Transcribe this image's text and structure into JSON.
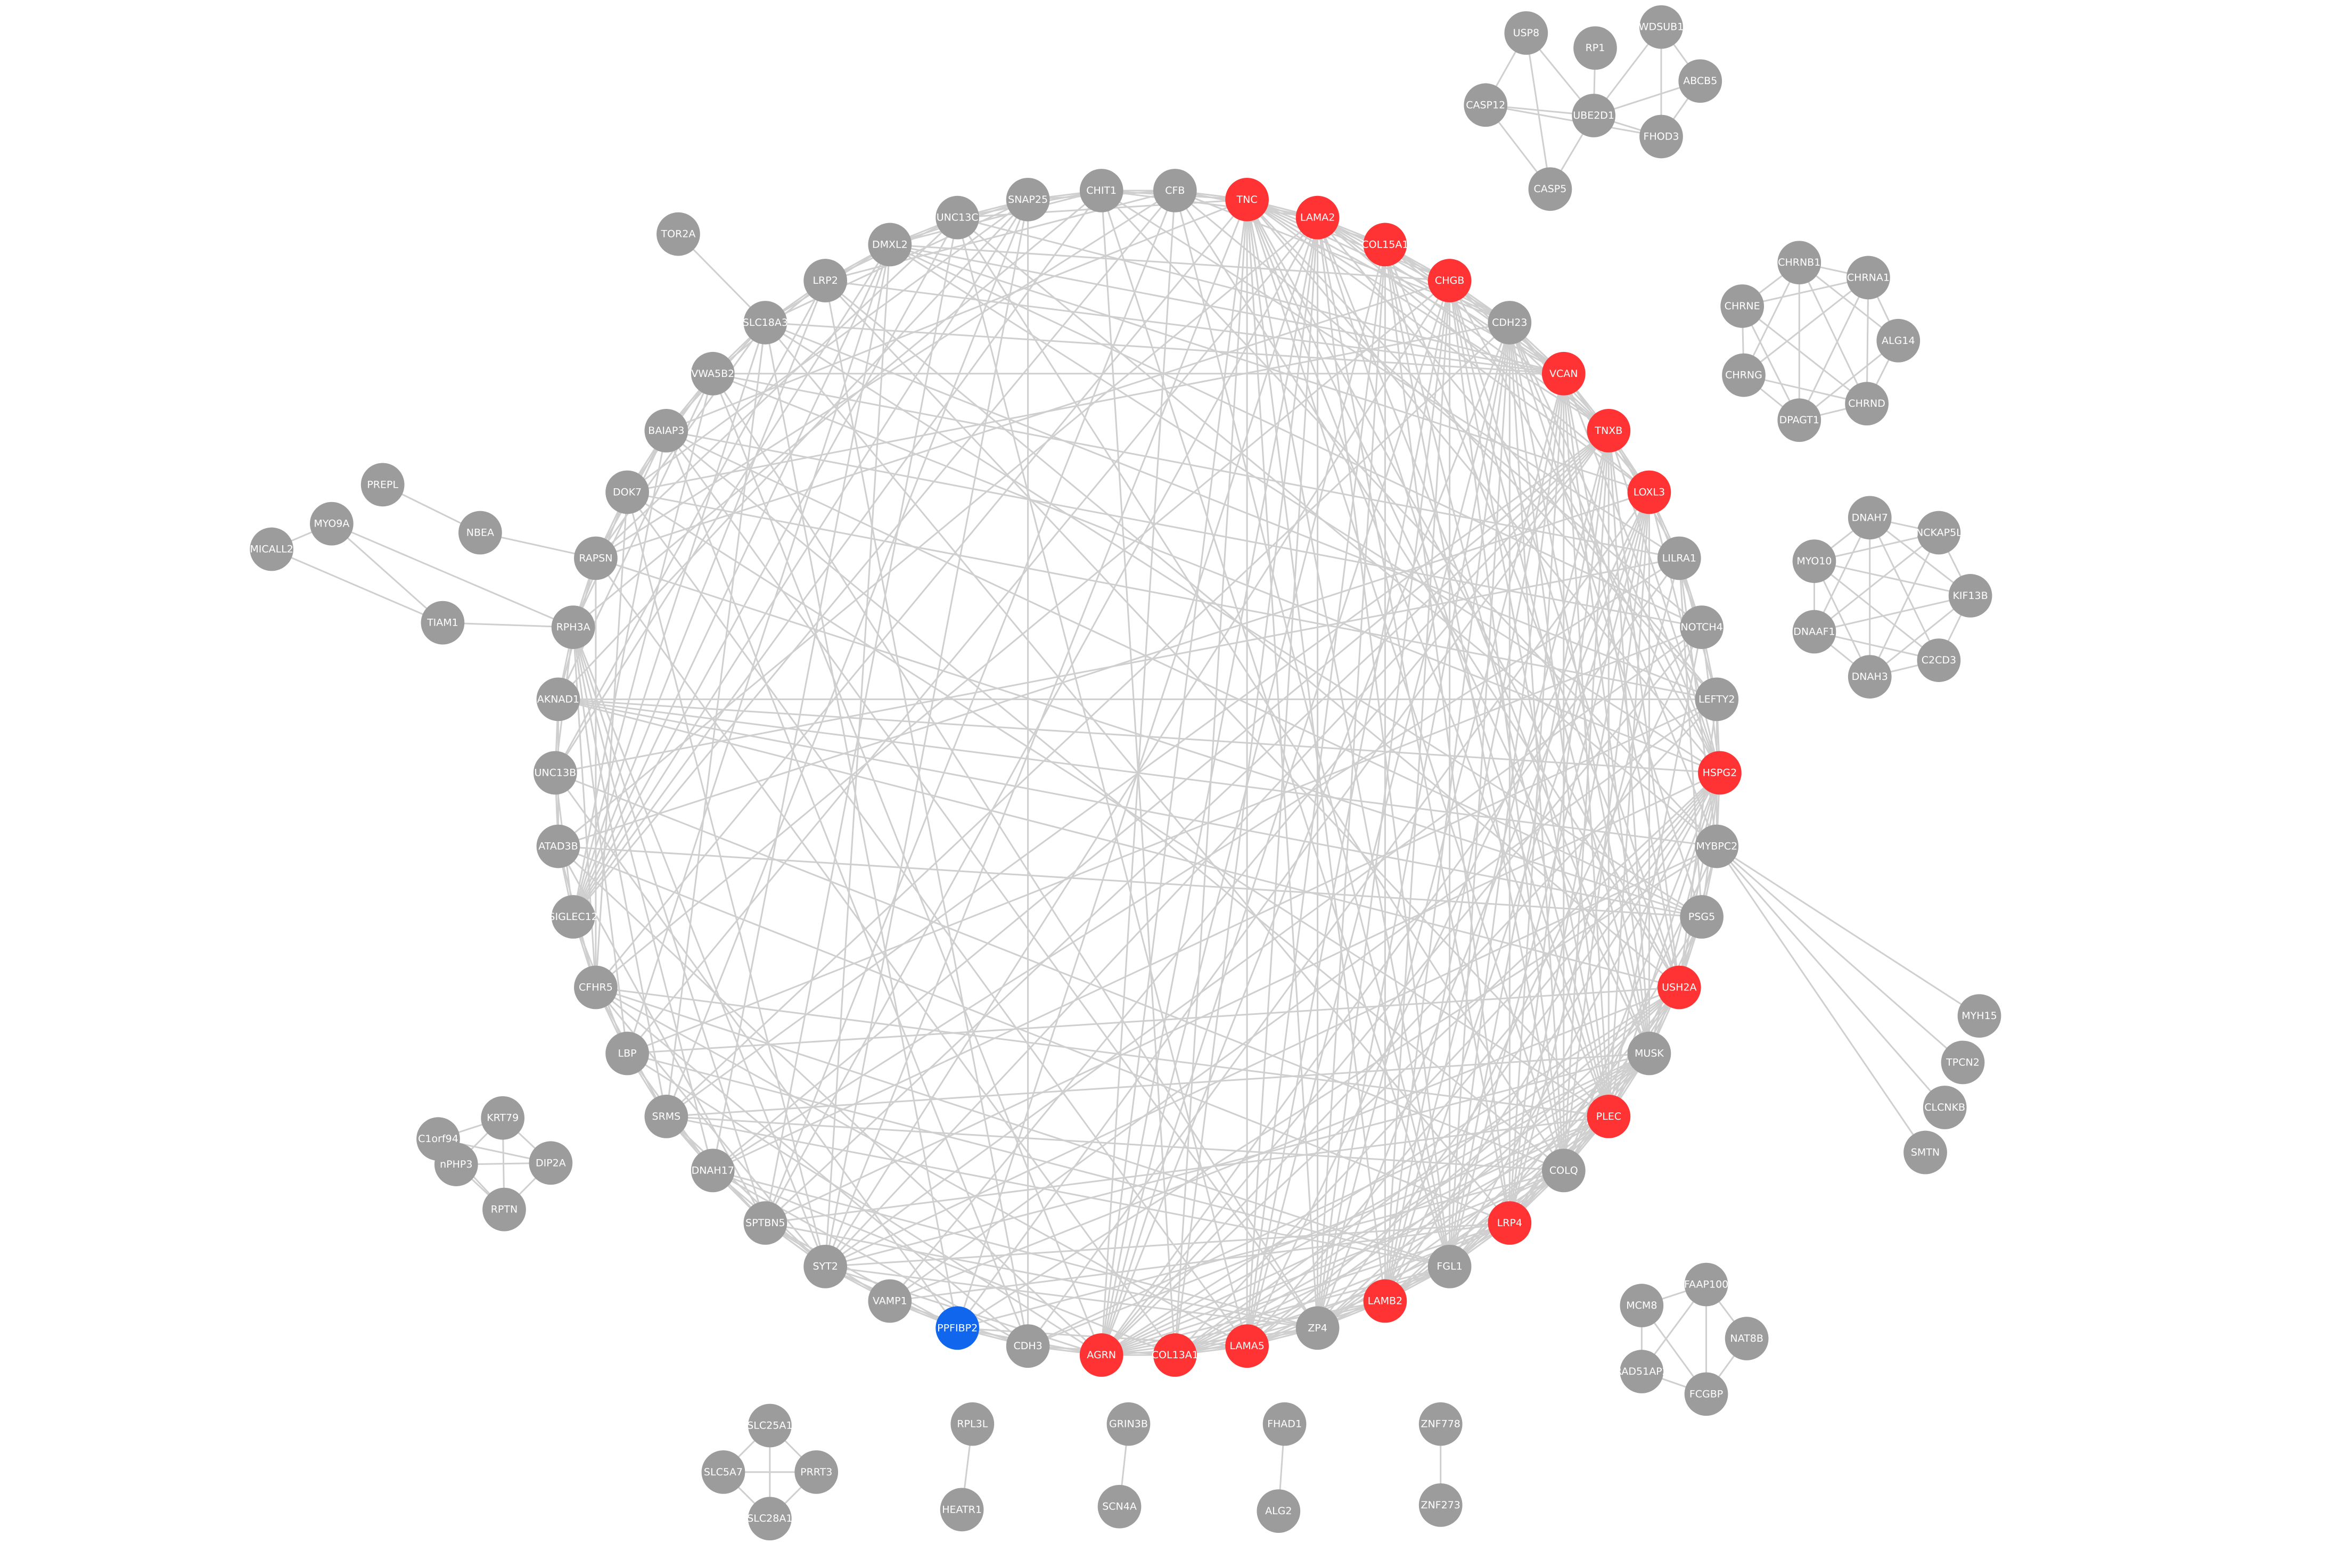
{
  "colors": {
    "default": "#9c9c9c",
    "highlight": "#ff3333",
    "selected": "#1166ee",
    "edge": "#cfcfcf",
    "label": "#ffffff"
  },
  "nodes": [
    {
      "id": "TNC",
      "label": "TNC",
      "color": "highlight"
    },
    {
      "id": "LAMA2",
      "label": "LAMA2",
      "color": "highlight"
    },
    {
      "id": "COL15A1",
      "label": "COL15A1",
      "color": "highlight"
    },
    {
      "id": "CHGB",
      "label": "CHGB",
      "color": "highlight"
    },
    {
      "id": "CDH23",
      "label": "CDH23",
      "color": "default"
    },
    {
      "id": "VCAN",
      "label": "VCAN",
      "color": "highlight"
    },
    {
      "id": "TNXB",
      "label": "TNXB",
      "color": "highlight"
    },
    {
      "id": "LOXL3",
      "label": "LOXL3",
      "color": "highlight"
    },
    {
      "id": "LILRA1",
      "label": "LILRA1",
      "color": "default"
    },
    {
      "id": "NOTCH4",
      "label": "NOTCH4",
      "color": "default"
    },
    {
      "id": "LEFTY2",
      "label": "LEFTY2",
      "color": "default"
    },
    {
      "id": "HSPG2",
      "label": "HSPG2",
      "color": "highlight"
    },
    {
      "id": "MYBPC2",
      "label": "MYBPC2",
      "color": "default"
    },
    {
      "id": "PSG5",
      "label": "PSG5",
      "color": "default"
    },
    {
      "id": "USH2A",
      "label": "USH2A",
      "color": "highlight"
    },
    {
      "id": "MUSK",
      "label": "MUSK",
      "color": "default"
    },
    {
      "id": "PLEC",
      "label": "PLEC",
      "color": "highlight"
    },
    {
      "id": "COLQ",
      "label": "COLQ",
      "color": "default"
    },
    {
      "id": "LRP4",
      "label": "LRP4",
      "color": "highlight"
    },
    {
      "id": "FGL1",
      "label": "FGL1",
      "color": "default"
    },
    {
      "id": "LAMB2",
      "label": "LAMB2",
      "color": "highlight"
    },
    {
      "id": "ZP4",
      "label": "ZP4",
      "color": "default"
    },
    {
      "id": "LAMA5",
      "label": "LAMA5",
      "color": "highlight"
    },
    {
      "id": "COL13A1",
      "label": "COL13A1",
      "color": "highlight"
    },
    {
      "id": "AGRN",
      "label": "AGRN",
      "color": "highlight"
    },
    {
      "id": "CDH3",
      "label": "CDH3",
      "color": "default"
    },
    {
      "id": "PPFIBP2",
      "label": "PPFIBP2",
      "color": "selected"
    },
    {
      "id": "VAMP1",
      "label": "VAMP1",
      "color": "default"
    },
    {
      "id": "SYT2",
      "label": "SYT2",
      "color": "default"
    },
    {
      "id": "SPTBN5",
      "label": "SPTBN5",
      "color": "default"
    },
    {
      "id": "DNAH17",
      "label": "DNAH17",
      "color": "default"
    },
    {
      "id": "SRMS",
      "label": "SRMS",
      "color": "default"
    },
    {
      "id": "LBP",
      "label": "LBP",
      "color": "default"
    },
    {
      "id": "CFHR5",
      "label": "CFHR5",
      "color": "default"
    },
    {
      "id": "SIGLEC12",
      "label": "SIGLEC12",
      "color": "default"
    },
    {
      "id": "ATAD3B",
      "label": "ATAD3B",
      "color": "default"
    },
    {
      "id": "UNC13B",
      "label": "UNC13B",
      "color": "default"
    },
    {
      "id": "AKNAD1",
      "label": "AKNAD1",
      "color": "default"
    },
    {
      "id": "RPH3A",
      "label": "RPH3A",
      "color": "default"
    },
    {
      "id": "RAPSN",
      "label": "RAPSN",
      "color": "default"
    },
    {
      "id": "DOK7",
      "label": "DOK7",
      "color": "default"
    },
    {
      "id": "BAIAP3",
      "label": "BAIAP3",
      "color": "default"
    },
    {
      "id": "VWA5B2",
      "label": "VWA5B2",
      "color": "default"
    },
    {
      "id": "SLC18A3",
      "label": "SLC18A3",
      "color": "default"
    },
    {
      "id": "LRP2",
      "label": "LRP2",
      "color": "default"
    },
    {
      "id": "DMXL2",
      "label": "DMXL2",
      "color": "default"
    },
    {
      "id": "UNC13C",
      "label": "UNC13C",
      "color": "default"
    },
    {
      "id": "SNAP25",
      "label": "SNAP25",
      "color": "default"
    },
    {
      "id": "CHIT1",
      "label": "CHIT1",
      "color": "default"
    },
    {
      "id": "CFB",
      "label": "CFB",
      "color": "default"
    },
    {
      "id": "TOR2A",
      "label": "TOR2A",
      "color": "default"
    },
    {
      "id": "PREPL",
      "label": "PREPL",
      "color": "default"
    },
    {
      "id": "NBEA",
      "label": "NBEA",
      "color": "default"
    },
    {
      "id": "MYO9A",
      "label": "MYO9A",
      "color": "default"
    },
    {
      "id": "MICALL2",
      "label": "MICALL2",
      "color": "default"
    },
    {
      "id": "TIAM1",
      "label": "TIAM1",
      "color": "default"
    },
    {
      "id": "USP8",
      "label": "USP8",
      "color": "default"
    },
    {
      "id": "RP1",
      "label": "RP1",
      "color": "default"
    },
    {
      "id": "WDSUB1",
      "label": "WDSUB1",
      "color": "default"
    },
    {
      "id": "ABCB5",
      "label": "ABCB5",
      "color": "default"
    },
    {
      "id": "CASP12",
      "label": "CASP12",
      "color": "default"
    },
    {
      "id": "UBE2D1",
      "label": "UBE2D1",
      "color": "default"
    },
    {
      "id": "FHOD3",
      "label": "FHOD3",
      "color": "default"
    },
    {
      "id": "CASP5",
      "label": "CASP5",
      "color": "default"
    },
    {
      "id": "CHRNB1",
      "label": "CHRNB1",
      "color": "default"
    },
    {
      "id": "CHRNA1",
      "label": "CHRNA1",
      "color": "default"
    },
    {
      "id": "CHRNE",
      "label": "CHRNE",
      "color": "default"
    },
    {
      "id": "ALG14",
      "label": "ALG14",
      "color": "default"
    },
    {
      "id": "CHRNG",
      "label": "CHRNG",
      "color": "default"
    },
    {
      "id": "CHRND",
      "label": "CHRND",
      "color": "default"
    },
    {
      "id": "DPAGT1",
      "label": "DPAGT1",
      "color": "default"
    },
    {
      "id": "DNAH7",
      "label": "DNAH7",
      "color": "default"
    },
    {
      "id": "NCKAP5L",
      "label": "NCKAP5L",
      "color": "default"
    },
    {
      "id": "MYO10",
      "label": "MYO10",
      "color": "default"
    },
    {
      "id": "KIF13B",
      "label": "KIF13B",
      "color": "default"
    },
    {
      "id": "DNAAF1",
      "label": "DNAAF1",
      "color": "default"
    },
    {
      "id": "C2CD3",
      "label": "C2CD3",
      "color": "default"
    },
    {
      "id": "DNAH3",
      "label": "DNAH3",
      "color": "default"
    },
    {
      "id": "MYH15",
      "label": "MYH15",
      "color": "default"
    },
    {
      "id": "TPCN2",
      "label": "TPCN2",
      "color": "default"
    },
    {
      "id": "CLCNKB",
      "label": "CLCNKB",
      "color": "default"
    },
    {
      "id": "SMTN",
      "label": "SMTN",
      "color": "default"
    },
    {
      "id": "KRT79",
      "label": "KRT79",
      "color": "default"
    },
    {
      "id": "C1orf94",
      "label": "C1orf94",
      "color": "default"
    },
    {
      "id": "nPHP3",
      "label": "nPHP3",
      "color": "default"
    },
    {
      "id": "DIP2A",
      "label": "DIP2A",
      "color": "default"
    },
    {
      "id": "RPTN",
      "label": "RPTN",
      "color": "default"
    },
    {
      "id": "FAAP100",
      "label": "FAAP100",
      "color": "default"
    },
    {
      "id": "MCM8",
      "label": "MCM8",
      "color": "default"
    },
    {
      "id": "NAT8B",
      "label": "NAT8B",
      "color": "default"
    },
    {
      "id": "RAD51AP2",
      "label": "RAD51AP2",
      "color": "default"
    },
    {
      "id": "FCGBP",
      "label": "FCGBP",
      "color": "default"
    },
    {
      "id": "SLC25A1",
      "label": "SLC25A1",
      "color": "default"
    },
    {
      "id": "SLC5A7",
      "label": "SLC5A7",
      "color": "default"
    },
    {
      "id": "PRRT3",
      "label": "PRRT3",
      "color": "default"
    },
    {
      "id": "SLC28A1",
      "label": "SLC28A1",
      "color": "default"
    },
    {
      "id": "RPL3L",
      "label": "RPL3L",
      "color": "default"
    },
    {
      "id": "HEATR1",
      "label": "HEATR1",
      "color": "default"
    },
    {
      "id": "GRIN3B",
      "label": "GRIN3B",
      "color": "default"
    },
    {
      "id": "SCN4A",
      "label": "SCN4A",
      "color": "default"
    },
    {
      "id": "FHAD1",
      "label": "FHAD1",
      "color": "default"
    },
    {
      "id": "ALG2",
      "label": "ALG2",
      "color": "default"
    },
    {
      "id": "ZNF778",
      "label": "ZNF778",
      "color": "default"
    },
    {
      "id": "ZNF273",
      "label": "ZNF273",
      "color": "default"
    }
  ],
  "edges": [
    [
      "TOR2A",
      "SLC18A3"
    ],
    [
      "PREPL",
      "NBEA"
    ],
    [
      "NBEA",
      "RAPSN"
    ],
    [
      "MYO9A",
      "MICALL2"
    ],
    [
      "MYO9A",
      "TIAM1"
    ],
    [
      "MYO9A",
      "RPH3A"
    ],
    [
      "MICALL2",
      "TIAM1"
    ],
    [
      "TIAM1",
      "RPH3A"
    ],
    [
      "USP8",
      "CASP12"
    ],
    [
      "USP8",
      "UBE2D1"
    ],
    [
      "USP8",
      "CASP5"
    ],
    [
      "RP1",
      "UBE2D1"
    ],
    [
      "WDSUB1",
      "ABCB5"
    ],
    [
      "WDSUB1",
      "UBE2D1"
    ],
    [
      "WDSUB1",
      "FHOD3"
    ],
    [
      "ABCB5",
      "FHOD3"
    ],
    [
      "CASP12",
      "UBE2D1"
    ],
    [
      "CASP12",
      "CASP5"
    ],
    [
      "CASP12",
      "FHOD3"
    ],
    [
      "UBE2D1",
      "FHOD3"
    ],
    [
      "UBE2D1",
      "CASP5"
    ],
    [
      "UBE2D1",
      "ABCB5"
    ],
    [
      "CHRNB1",
      "CHRNA1"
    ],
    [
      "CHRNB1",
      "CHRNE"
    ],
    [
      "CHRNB1",
      "CHRNG"
    ],
    [
      "CHRNB1",
      "CHRND"
    ],
    [
      "CHRNB1",
      "DPAGT1"
    ],
    [
      "CHRNB1",
      "ALG14"
    ],
    [
      "CHRNA1",
      "CHRNE"
    ],
    [
      "CHRNA1",
      "ALG14"
    ],
    [
      "CHRNA1",
      "CHRNG"
    ],
    [
      "CHRNA1",
      "CHRND"
    ],
    [
      "CHRNA1",
      "DPAGT1"
    ],
    [
      "CHRNE",
      "CHRNG"
    ],
    [
      "CHRNE",
      "CHRND"
    ],
    [
      "CHRNE",
      "DPAGT1"
    ],
    [
      "ALG14",
      "DPAGT1"
    ],
    [
      "ALG14",
      "CHRND"
    ],
    [
      "CHRNG",
      "CHRND"
    ],
    [
      "CHRNG",
      "DPAGT1"
    ],
    [
      "CHRND",
      "DPAGT1"
    ],
    [
      "DNAH7",
      "NCKAP5L"
    ],
    [
      "DNAH7",
      "MYO10"
    ],
    [
      "DNAH7",
      "KIF13B"
    ],
    [
      "DNAH7",
      "DNAAF1"
    ],
    [
      "DNAH7",
      "C2CD3"
    ],
    [
      "DNAH7",
      "DNAH3"
    ],
    [
      "NCKAP5L",
      "MYO10"
    ],
    [
      "NCKAP5L",
      "KIF13B"
    ],
    [
      "NCKAP5L",
      "DNAAF1"
    ],
    [
      "NCKAP5L",
      "DNAH3"
    ],
    [
      "MYO10",
      "KIF13B"
    ],
    [
      "MYO10",
      "DNAAF1"
    ],
    [
      "MYO10",
      "C2CD3"
    ],
    [
      "MYO10",
      "DNAH3"
    ],
    [
      "KIF13B",
      "C2CD3"
    ],
    [
      "KIF13B",
      "DNAAF1"
    ],
    [
      "KIF13B",
      "DNAH3"
    ],
    [
      "DNAAF1",
      "DNAH3"
    ],
    [
      "DNAAF1",
      "C2CD3"
    ],
    [
      "C2CD3",
      "DNAH3"
    ],
    [
      "MYBPC2",
      "MYH15"
    ],
    [
      "MYBPC2",
      "TPCN2"
    ],
    [
      "MYBPC2",
      "CLCNKB"
    ],
    [
      "MYBPC2",
      "SMTN"
    ],
    [
      "KRT79",
      "C1orf94"
    ],
    [
      "KRT79",
      "DIP2A"
    ],
    [
      "KRT79",
      "nPHP3"
    ],
    [
      "KRT79",
      "RPTN"
    ],
    [
      "C1orf94",
      "RPTN"
    ],
    [
      "C1orf94",
      "DIP2A"
    ],
    [
      "nPHP3",
      "DIP2A"
    ],
    [
      "nPHP3",
      "RPTN"
    ],
    [
      "DIP2A",
      "RPTN"
    ],
    [
      "FAAP100",
      "MCM8"
    ],
    [
      "FAAP100",
      "NAT8B"
    ],
    [
      "FAAP100",
      "RAD51AP2"
    ],
    [
      "FAAP100",
      "FCGBP"
    ],
    [
      "MCM8",
      "RAD51AP2"
    ],
    [
      "MCM8",
      "FCGBP"
    ],
    [
      "NAT8B",
      "FCGBP"
    ],
    [
      "RAD51AP2",
      "FCGBP"
    ],
    [
      "SLC25A1",
      "SLC5A7"
    ],
    [
      "SLC25A1",
      "PRRT3"
    ],
    [
      "SLC25A1",
      "SLC28A1"
    ],
    [
      "SLC5A7",
      "PRRT3"
    ],
    [
      "SLC5A7",
      "SLC28A1"
    ],
    [
      "PRRT3",
      "SLC28A1"
    ],
    [
      "RPL3L",
      "HEATR1"
    ],
    [
      "GRIN3B",
      "SCN4A"
    ],
    [
      "FHAD1",
      "ALG2"
    ],
    [
      "ZNF778",
      "ZNF273"
    ]
  ]
}
